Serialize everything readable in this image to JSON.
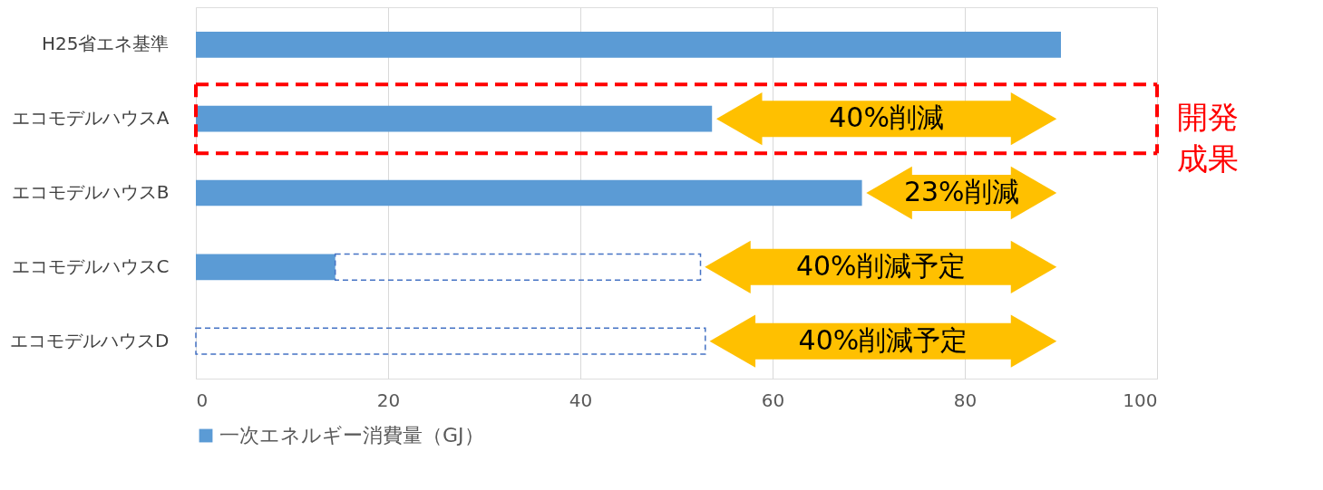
{
  "chart_data": {
    "type": "bar",
    "orientation": "horizontal",
    "stacked": true,
    "categories": [
      "H25省エネ基準",
      "エコモデルハウスA",
      "エコモデルハウスB",
      "エコモデルハウスC",
      "エコモデルハウスD"
    ],
    "series": [
      {
        "name": "一次エネルギー消費量（GJ）",
        "color": "#5b9bd5",
        "values": [
          90,
          53.7,
          69.3,
          14.5,
          null
        ]
      },
      {
        "color": "#4472c4",
        "line_style": "dashed",
        "values": [
          null,
          null,
          null,
          38,
          53
        ]
      }
    ],
    "xlim": [
      0,
      100
    ],
    "xticks": [
      0,
      20,
      40,
      60,
      80,
      100
    ],
    "grid": "x",
    "legend": "bottom",
    "annotations": [
      "40%削減",
      "23%削減",
      "40%削減予定",
      "40%削減予定",
      "開発成果"
    ]
  }
}
